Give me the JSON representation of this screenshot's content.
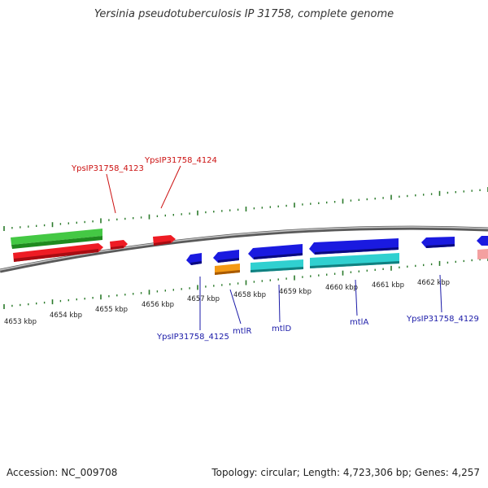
{
  "title": "Yersinia pseudotuberculosis IP 31758, complete genome",
  "footer": {
    "accession": "Accession: NC_009708",
    "stats": "Topology: circular; Length: 4,723,306 bp; Genes: 4,257"
  },
  "colors": {
    "tick_green": "#2a7a2a",
    "backbone": "#8a8a8a",
    "gene_green": "#33b833",
    "gene_red": "#e8202a",
    "gene_blue": "#1a1ad8",
    "gene_orange": "#f0920a",
    "gene_cyan": "#28c8c8",
    "gene_pink": "#f09a9a",
    "label_red": "#cc1111",
    "label_blue": "#1a1aa8"
  },
  "kbp_labels": [
    "4653 kbp",
    "4654 kbp",
    "4655 kbp",
    "4656 kbp",
    "4657 kbp",
    "4658 kbp",
    "4659 kbp",
    "4660 kbp",
    "4661 kbp",
    "4662 kbp"
  ],
  "gene_labels": [
    {
      "id": "ypsip31758-4123",
      "text": "YpsIP31758_4123",
      "color": "red"
    },
    {
      "id": "ypsip31758-4124",
      "text": "YpsIP31758_4124",
      "color": "red"
    },
    {
      "id": "ypsip31758-4125",
      "text": "YpsIP31758_4125",
      "color": "blue"
    },
    {
      "id": "mtlr",
      "text": "mtlR",
      "color": "blue"
    },
    {
      "id": "mtld",
      "text": "mtlD",
      "color": "blue"
    },
    {
      "id": "mtla",
      "text": "mtlA",
      "color": "blue"
    },
    {
      "id": "ypsip31758-4129",
      "text": "YpsIP31758_4129",
      "color": "blue"
    }
  ]
}
